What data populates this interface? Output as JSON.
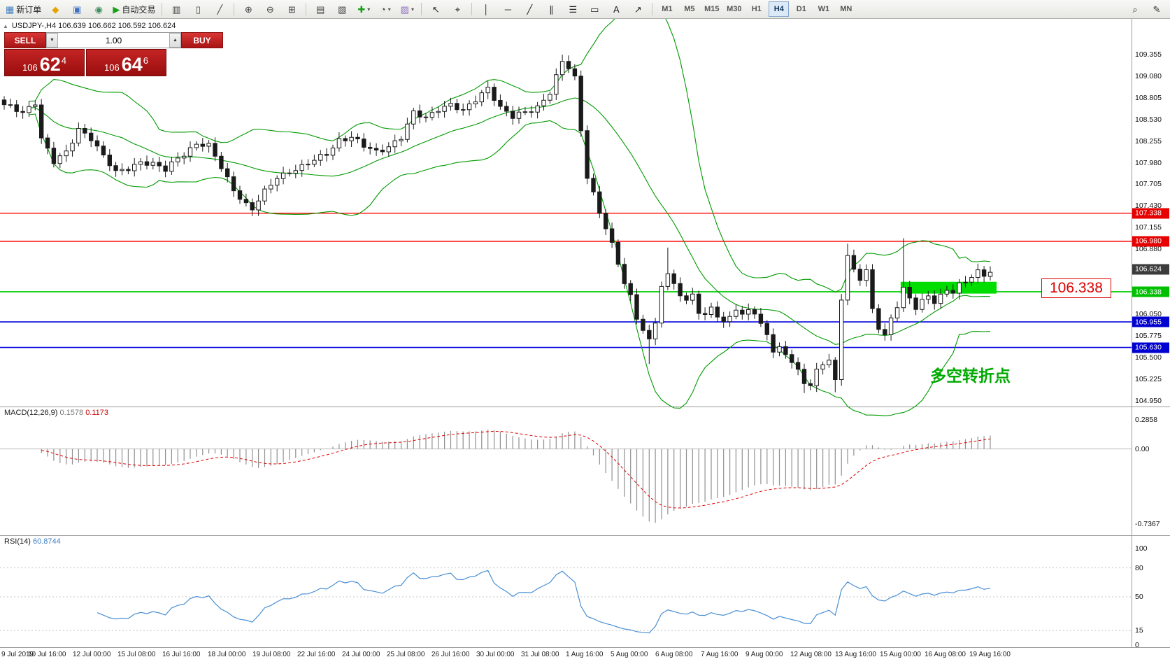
{
  "toolbar": {
    "items": [
      {
        "name": "new-order-button",
        "glyph": "▦",
        "glyph_color": "#3f7fbf",
        "label": "新订单"
      },
      {
        "name": "mql-community-button",
        "glyph": "◆",
        "glyph_color": "#e8a200"
      },
      {
        "name": "profiles-button",
        "glyph": "▣",
        "glyph_color": "#3f6fbf"
      },
      {
        "name": "data-window-button",
        "glyph": "◉",
        "glyph_color": "#3f8f5f"
      },
      {
        "name": "autotrading-button",
        "glyph": "▶",
        "glyph_color": "#18a018",
        "label": "自动交易"
      },
      {
        "sep": true
      },
      {
        "name": "bar-chart-icon-button",
        "glyph": "▥",
        "glyph_color": "#444"
      },
      {
        "name": "candle-chart-icon-button",
        "glyph": "▯",
        "glyph_color": "#444"
      },
      {
        "name": "line-chart-icon-button",
        "glyph": "╱",
        "glyph_color": "#444"
      },
      {
        "sep": true
      },
      {
        "name": "zoom-in-button",
        "glyph": "⊕",
        "glyph_color": "#444"
      },
      {
        "name": "zoom-out-button",
        "glyph": "⊖",
        "glyph_color": "#444"
      },
      {
        "name": "tile-windows-button",
        "glyph": "⊞",
        "glyph_color": "#444"
      },
      {
        "sep": true
      },
      {
        "name": "arrange-charts-button",
        "glyph": "▤",
        "glyph_color": "#444"
      },
      {
        "name": "cascade-charts-button",
        "glyph": "▧",
        "glyph_color": "#444"
      },
      {
        "name": "indicators-button",
        "glyph": "✚",
        "glyph_color": "#18a018",
        "dropdown": true
      },
      {
        "name": "periods-button",
        "glyph": "◔",
        "glyph_color": "#444",
        "dropdown": true
      },
      {
        "name": "templates-button",
        "glyph": "▨",
        "glyph_color": "#8f6fbf",
        "dropdown": true
      },
      {
        "sep": true
      },
      {
        "name": "cursor-button",
        "glyph": "↖",
        "glyph_color": "#222"
      },
      {
        "name": "crosshair-button",
        "glyph": "⌖",
        "glyph_color": "#222"
      },
      {
        "sep": true
      },
      {
        "name": "vertical-line-button",
        "glyph": "│",
        "glyph_color": "#222"
      },
      {
        "name": "horizontal-line-button",
        "glyph": "─",
        "glyph_color": "#222"
      },
      {
        "name": "trendline-button",
        "glyph": "╱",
        "glyph_color": "#222"
      },
      {
        "name": "channel-button",
        "glyph": "∥",
        "glyph_color": "#222"
      },
      {
        "name": "fibonacci-button",
        "glyph": "☰",
        "glyph_color": "#222"
      },
      {
        "name": "shapes-button",
        "glyph": "▭",
        "glyph_color": "#222"
      },
      {
        "name": "text-button",
        "glyph": "A",
        "glyph_color": "#222"
      },
      {
        "name": "arrow-tools-button",
        "glyph": "↗",
        "glyph_color": "#222"
      },
      {
        "sep": true
      }
    ],
    "timeframes": [
      "M1",
      "M5",
      "M15",
      "M30",
      "H1",
      "H4",
      "D1",
      "W1",
      "MN"
    ],
    "active_timeframe": "H4",
    "right_items": [
      {
        "name": "quick-search-button",
        "glyph": "⌕",
        "glyph_color": "#333"
      },
      {
        "name": "quick-edit-button",
        "glyph": "✎",
        "glyph_color": "#333"
      }
    ]
  },
  "chart": {
    "symbol_header": "USDJPY-,H4  106.639 106.662 106.592 106.624",
    "trade_panel": {
      "sell_label": "SELL",
      "buy_label": "BUY",
      "volume": "1.00",
      "sell_prefix": "106",
      "sell_main": "62",
      "sell_sup": "4",
      "buy_prefix": "106",
      "buy_main": "64",
      "buy_sup": "6"
    },
    "annotation": "多空转折点",
    "callout_text": "106.338",
    "axis_plain_labels": [
      "109.355",
      "109.080",
      "108.805",
      "108.530",
      "108.255",
      "107.980",
      "107.705",
      "107.430",
      "107.155",
      "106.880",
      "106.050",
      "105.775",
      "105.500",
      "105.225",
      "104.950"
    ],
    "price_tags": [
      {
        "text": "107.338",
        "color": "#e60000"
      },
      {
        "text": "106.980",
        "color": "#e60000"
      },
      {
        "text": "106.624",
        "color": "#3c3c3c"
      },
      {
        "text": "106.338",
        "color": "#00c000"
      },
      {
        "text": "105.955",
        "color": "#0000d0"
      },
      {
        "text": "105.630",
        "color": "#0000d0"
      }
    ],
    "hlines": [
      {
        "price": 107.338,
        "color": "#ff0000",
        "w": 1.4
      },
      {
        "price": 106.98,
        "color": "#ff0000",
        "w": 1.4
      },
      {
        "price": 106.338,
        "color": "#00cc00",
        "w": 1.7
      },
      {
        "price": 105.955,
        "color": "#0000dd",
        "w": 1.7
      },
      {
        "price": 105.63,
        "color": "#0000dd",
        "w": 1.7
      }
    ],
    "highlight_rect": {
      "from_candle": 145,
      "to_candle": 160,
      "price_top": 106.465,
      "price_bottom": 106.315,
      "color": "#00dd00"
    }
  },
  "macd": {
    "label": "MACD(12,26,9)",
    "value_main": "0.1578",
    "value_signal": "0.1173",
    "axis": [
      "0.2858",
      "0.00",
      "-0.7367"
    ]
  },
  "rsi": {
    "label": "RSI(14)",
    "value": "60.8744",
    "axis": [
      "100",
      "80",
      "50",
      "15",
      "0"
    ],
    "levels": [
      80,
      50,
      15
    ]
  },
  "time_axis": [
    "9 Jul 2019",
    "10 Jul 16:00",
    "12 Jul 00:00",
    "15 Jul 08:00",
    "16 Jul 16:00",
    "18 Jul 00:00",
    "19 Jul 08:00",
    "22 Jul 16:00",
    "24 Jul 00:00",
    "25 Jul 08:00",
    "26 Jul 16:00",
    "30 Jul 00:00",
    "31 Jul 08:00",
    "1 Aug 16:00",
    "5 Aug 00:00",
    "6 Aug 08:00",
    "7 Aug 16:00",
    "9 Aug 00:00",
    "12 Aug 08:00",
    "13 Aug 16:00",
    "15 Aug 00:00",
    "16 Aug 08:00",
    "19 Aug 16:00"
  ],
  "chart_data": {
    "type": "candlestick",
    "symbol": "USDJPY-",
    "timeframe": "H4",
    "current_bar": {
      "open": 106.639,
      "high": 106.662,
      "low": 106.592,
      "close": 106.624
    },
    "price_axis_range": [
      104.95,
      109.355
    ],
    "candle_count": 160,
    "close_anchors": [
      [
        0,
        108.7
      ],
      [
        3,
        108.62
      ],
      [
        5,
        108.76
      ],
      [
        6,
        108.3
      ],
      [
        8,
        107.98
      ],
      [
        10,
        108.1
      ],
      [
        12,
        108.42
      ],
      [
        14,
        108.3
      ],
      [
        16,
        108.05
      ],
      [
        18,
        107.85
      ],
      [
        20,
        107.92
      ],
      [
        22,
        108.0
      ],
      [
        24,
        107.95
      ],
      [
        26,
        107.88
      ],
      [
        28,
        108.05
      ],
      [
        31,
        108.22
      ],
      [
        33,
        108.18
      ],
      [
        35,
        107.92
      ],
      [
        37,
        107.65
      ],
      [
        39,
        107.45
      ],
      [
        40,
        107.38
      ],
      [
        42,
        107.6
      ],
      [
        44,
        107.8
      ],
      [
        46,
        107.88
      ],
      [
        48,
        107.92
      ],
      [
        50,
        108.0
      ],
      [
        52,
        108.1
      ],
      [
        54,
        108.28
      ],
      [
        56,
        108.3
      ],
      [
        58,
        108.18
      ],
      [
        60,
        108.12
      ],
      [
        62,
        108.2
      ],
      [
        64,
        108.3
      ],
      [
        66,
        108.6
      ],
      [
        68,
        108.55
      ],
      [
        70,
        108.68
      ],
      [
        72,
        108.72
      ],
      [
        74,
        108.62
      ],
      [
        76,
        108.78
      ],
      [
        78,
        108.95
      ],
      [
        80,
        108.68
      ],
      [
        82,
        108.55
      ],
      [
        84,
        108.62
      ],
      [
        86,
        108.7
      ],
      [
        88,
        108.88
      ],
      [
        90,
        109.25
      ],
      [
        91,
        109.18
      ],
      [
        92,
        109.05
      ],
      [
        93,
        108.4
      ],
      [
        94,
        107.82
      ],
      [
        95,
        107.6
      ],
      [
        96,
        107.35
      ],
      [
        97,
        107.15
      ],
      [
        98,
        106.92
      ],
      [
        99,
        106.68
      ],
      [
        100,
        106.45
      ],
      [
        101,
        106.28
      ],
      [
        102,
        106.02
      ],
      [
        103,
        105.88
      ],
      [
        104,
        105.72
      ],
      [
        105,
        105.95
      ],
      [
        106,
        106.4
      ],
      [
        107,
        106.52
      ],
      [
        108,
        106.45
      ],
      [
        109,
        106.3
      ],
      [
        110,
        106.22
      ],
      [
        111,
        106.35
      ],
      [
        112,
        106.08
      ],
      [
        113,
        106.02
      ],
      [
        114,
        106.15
      ],
      [
        115,
        106.0
      ],
      [
        116,
        105.92
      ],
      [
        117,
        106.05
      ],
      [
        118,
        106.12
      ],
      [
        119,
        106.05
      ],
      [
        120,
        106.15
      ],
      [
        121,
        106.05
      ],
      [
        122,
        105.9
      ],
      [
        123,
        105.8
      ],
      [
        124,
        105.55
      ],
      [
        125,
        105.62
      ],
      [
        126,
        105.58
      ],
      [
        127,
        105.45
      ],
      [
        128,
        105.35
      ],
      [
        129,
        105.2
      ],
      [
        130,
        105.12
      ],
      [
        131,
        105.32
      ],
      [
        132,
        105.42
      ],
      [
        133,
        105.45
      ],
      [
        134,
        105.22
      ],
      [
        135,
        106.28
      ],
      [
        136,
        106.8
      ],
      [
        137,
        106.62
      ],
      [
        138,
        106.5
      ],
      [
        139,
        106.58
      ],
      [
        140,
        106.1
      ],
      [
        141,
        105.88
      ],
      [
        142,
        105.78
      ],
      [
        143,
        106.02
      ],
      [
        144,
        106.18
      ],
      [
        145,
        106.38
      ],
      [
        146,
        106.25
      ],
      [
        147,
        106.12
      ],
      [
        148,
        106.2
      ],
      [
        149,
        106.28
      ],
      [
        150,
        106.22
      ],
      [
        151,
        106.3
      ],
      [
        152,
        106.38
      ],
      [
        153,
        106.35
      ],
      [
        154,
        106.42
      ],
      [
        155,
        106.45
      ],
      [
        156,
        106.52
      ],
      [
        157,
        106.58
      ],
      [
        158,
        106.55
      ],
      [
        159,
        106.62
      ]
    ],
    "wick_spikes": [
      {
        "i": 40,
        "l": 107.3
      },
      {
        "i": 90,
        "h": 109.355
      },
      {
        "i": 104,
        "l": 105.42
      },
      {
        "i": 107,
        "h": 106.9
      },
      {
        "i": 129,
        "l": 105.05
      },
      {
        "i": 134,
        "l": 105.06
      },
      {
        "i": 136,
        "h": 106.95
      },
      {
        "i": 145,
        "h": 107.02
      }
    ],
    "indicators": {
      "bollinger": {
        "period": 20,
        "deviation": 2
      },
      "macd": {
        "fast": 12,
        "slow": 26,
        "signal": 9
      },
      "rsi": {
        "period": 14
      }
    },
    "levels": {
      "resistance": [
        107.338,
        106.98
      ],
      "pivot": 106.338,
      "support": [
        105.955,
        105.63
      ]
    }
  }
}
